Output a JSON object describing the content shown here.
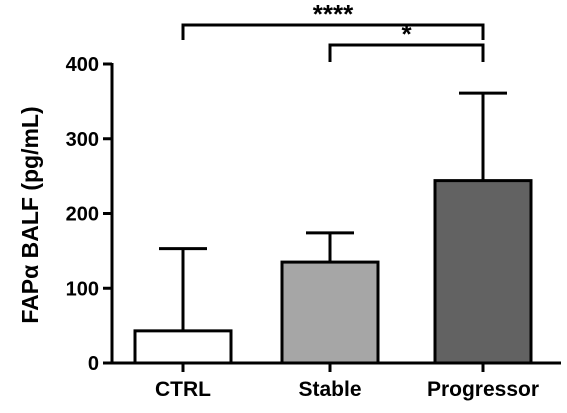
{
  "chart_data": {
    "type": "bar",
    "title": "",
    "xlabel": "",
    "ylabel": "FAPα BALF (pg/mL)",
    "ylim": [
      0,
      400
    ],
    "yticks": [
      0,
      100,
      200,
      300,
      400
    ],
    "ytick_labels": [
      "0",
      "100",
      "200",
      "300",
      "400"
    ],
    "categories": [
      "CTRL",
      "Stable",
      "Progressor"
    ],
    "values": [
      43,
      135,
      244
    ],
    "error_upper": [
      153,
      174,
      361
    ],
    "bar_colors": [
      "#ffffff",
      "#a6a6a6",
      "#626262"
    ],
    "grid": false,
    "significance": [
      {
        "from": 0,
        "to": 2,
        "label": "****"
      },
      {
        "from": 1,
        "to": 2,
        "label": "*"
      }
    ]
  }
}
